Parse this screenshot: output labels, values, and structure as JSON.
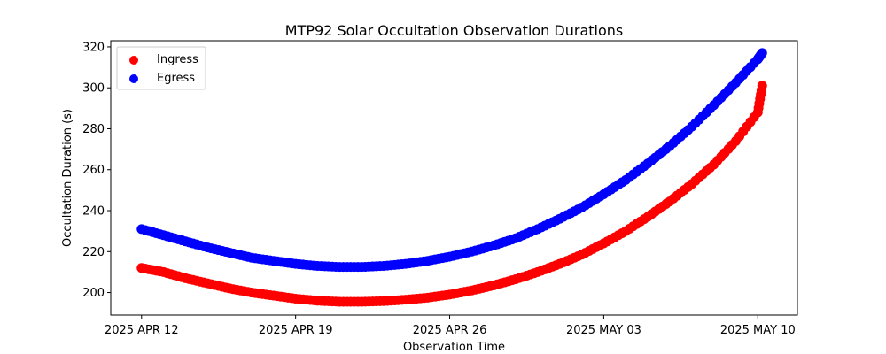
{
  "chart_data": {
    "type": "scatter",
    "title": "MTP92 Solar Occultation Observation Durations",
    "xlabel": "Observation Time",
    "ylabel": "Occultation Duration (s)",
    "x_unit": "days since 2025 APR 12",
    "xlim": [
      -1.4,
      29.8
    ],
    "ylim": [
      189,
      323
    ],
    "x_ticks": [
      {
        "value": 0,
        "label": "2025 APR 12"
      },
      {
        "value": 7,
        "label": "2025 APR 19"
      },
      {
        "value": 14,
        "label": "2025 APR 26"
      },
      {
        "value": 21,
        "label": "2025 MAY 03"
      },
      {
        "value": 28,
        "label": "2025 MAY 10"
      }
    ],
    "y_ticks": [
      200,
      220,
      240,
      260,
      280,
      300,
      320
    ],
    "grid": false,
    "legend": {
      "position": "top-left",
      "entries": [
        "Ingress",
        "Egress"
      ]
    },
    "series": [
      {
        "name": "Ingress",
        "color": "#ff0000",
        "x": [
          0,
          1,
          2,
          3,
          4,
          5,
          6,
          7,
          8,
          9,
          10,
          11,
          12,
          13,
          14,
          15,
          16,
          17,
          18,
          19,
          20,
          21,
          22,
          23,
          24,
          25,
          26,
          27,
          28,
          28.2
        ],
        "y": [
          212,
          210,
          207,
          204.5,
          202,
          200,
          198.5,
          197,
          196,
          195.5,
          195.5,
          195.8,
          196.5,
          197.5,
          199,
          201,
          203.5,
          206.5,
          210,
          214,
          218.5,
          224,
          230,
          237,
          244.5,
          253,
          262.5,
          274,
          288,
          301
        ]
      },
      {
        "name": "Egress",
        "color": "#0000ff",
        "x": [
          0,
          1,
          2,
          3,
          4,
          5,
          6,
          7,
          8,
          9,
          10,
          11,
          12,
          13,
          14,
          15,
          16,
          17,
          18,
          19,
          20,
          21,
          22,
          23,
          24,
          25,
          26,
          27,
          28,
          28.2
        ],
        "y": [
          231,
          228,
          225,
          222,
          219.5,
          217,
          215.5,
          214,
          213,
          212.5,
          212.5,
          213,
          214,
          215.5,
          217.5,
          220,
          223,
          226.5,
          231,
          236,
          241.5,
          248,
          255,
          263,
          271.5,
          281,
          291.5,
          302.5,
          314,
          317
        ]
      }
    ]
  }
}
